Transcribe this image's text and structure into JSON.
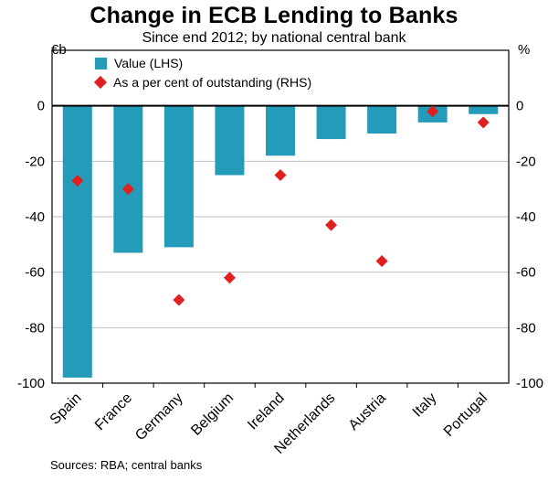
{
  "chart_data": {
    "type": "bar",
    "title": "Change in ECB Lending to Banks",
    "subtitle": "Since end 2012; by national central bank",
    "categories": [
      "Spain",
      "France",
      "Germany",
      "Belgium",
      "Ireland",
      "Netherlands",
      "Austria",
      "Italy",
      "Portugal"
    ],
    "series": [
      {
        "name": "Value (LHS)",
        "type": "bar",
        "axis": "left",
        "values": [
          -98,
          -53,
          -51,
          -25,
          -18,
          -12,
          -10,
          -6,
          -3
        ]
      },
      {
        "name": "As a per cent of outstanding (RHS)",
        "type": "scatter",
        "marker": "diamond",
        "axis": "right",
        "values": [
          -27,
          -30,
          -70,
          -62,
          -25,
          -43,
          -56,
          -2,
          -6
        ]
      }
    ],
    "ylabel_left": "€b",
    "ylabel_right": "%",
    "ylim": [
      -100,
      20
    ],
    "yticks": [
      0,
      -20,
      -40,
      -60,
      -80,
      -100
    ],
    "grid": true,
    "legend_position": "top-left"
  },
  "footer": "Sources: RBA; central banks",
  "colors": {
    "bar": "#239bb9",
    "marker": "#e0201e",
    "grid": "#bfbfbf",
    "axis": "#000000",
    "text": "#000000",
    "background": "#ffffff"
  }
}
